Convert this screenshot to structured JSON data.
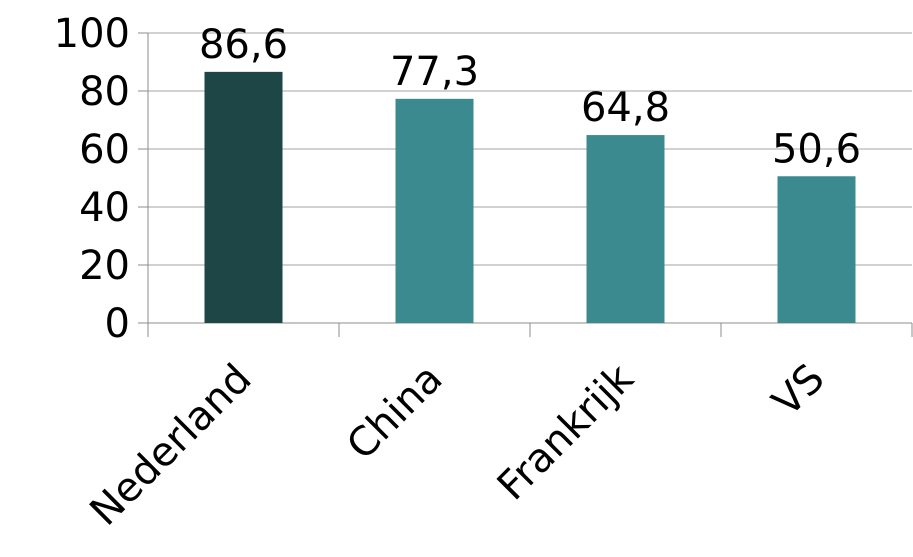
{
  "chart_data": {
    "type": "bar",
    "categories": [
      "Nederland",
      "China",
      "Frankrijk",
      "VS"
    ],
    "values": [
      86.6,
      77.3,
      64.8,
      50.6
    ],
    "data_labels": [
      "86,6",
      "77,3",
      "64,8",
      "50,6"
    ],
    "ylim": [
      0,
      100
    ],
    "yticks": [
      0,
      20,
      40,
      60,
      80,
      100
    ],
    "ytick_labels": [
      "0",
      "20",
      "40",
      "60",
      "80",
      "100"
    ],
    "grid": true,
    "legend": "none",
    "colors": {
      "highlight": "#1f4646",
      "bar": "#3b8a8f",
      "grid": "#a6a6a6",
      "axis": "#8c8c8c"
    },
    "highlight_index": 0
  }
}
